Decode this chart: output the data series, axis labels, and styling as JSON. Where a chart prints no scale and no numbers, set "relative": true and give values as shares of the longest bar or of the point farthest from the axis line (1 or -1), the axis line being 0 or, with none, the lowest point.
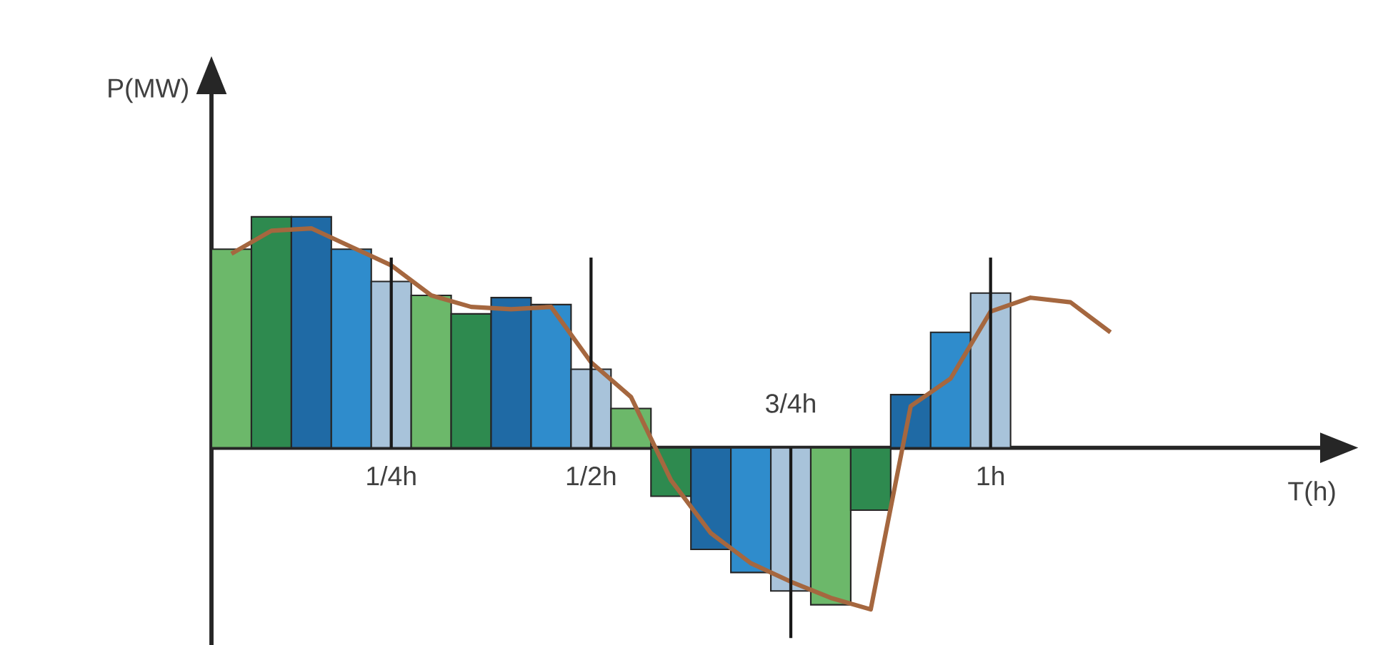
{
  "chart_data": {
    "type": "bar",
    "relative": true,
    "xlabel": "T(h)",
    "ylabel": "P(MW)",
    "ref_lines": [
      {
        "axis": "x",
        "value": "1/4h"
      },
      {
        "axis": "x",
        "value": "1/2h"
      },
      {
        "axis": "x",
        "value": "3/4h"
      },
      {
        "axis": "x",
        "value": "1h"
      }
    ],
    "categories": [
      null,
      null,
      null,
      null,
      "1/4h",
      null,
      null,
      null,
      null,
      "1/2h",
      null,
      null,
      null,
      null,
      "3/4h",
      null,
      null,
      null,
      null,
      "1h",
      null,
      null,
      null,
      null
    ],
    "series": [
      {
        "values": [
          0.86,
          1.0,
          1.0,
          0.86,
          0.72,
          0.66,
          0.58,
          0.65,
          0.62,
          0.34,
          0.17,
          -0.21,
          -0.44,
          -0.54,
          -0.62,
          -0.68,
          -0.27,
          0.23,
          0.5,
          0.67,
          null,
          null,
          null,
          null
        ],
        "colors": [
          "#6cb86a",
          "#2e8a4f",
          "#1f6aa5",
          "#2f8ccc",
          "#a8c3da",
          "#6cb86a",
          "#2e8a4f",
          "#1f6aa5",
          "#2f8ccc",
          "#a8c3da",
          "#6cb86a",
          "#2e8a4f",
          "#1f6aa5",
          "#2f8ccc",
          "#a8c3da",
          "#6cb86a",
          "#2e8a4f",
          "#1f6aa5",
          "#2f8ccc",
          "#a8c3da",
          "#a8c3da",
          "#a8c3da",
          "#a8c3da",
          "#a8c3da"
        ]
      },
      {
        "type": "line",
        "color": "#a5673f",
        "values": [
          0.84,
          0.94,
          0.95,
          0.87,
          0.79,
          0.66,
          0.61,
          0.6,
          0.61,
          0.37,
          0.22,
          -0.14,
          -0.37,
          -0.5,
          -0.58,
          -0.65,
          -0.7,
          0.18,
          0.3,
          0.59,
          0.65,
          0.63,
          0.5,
          null
        ]
      }
    ]
  }
}
